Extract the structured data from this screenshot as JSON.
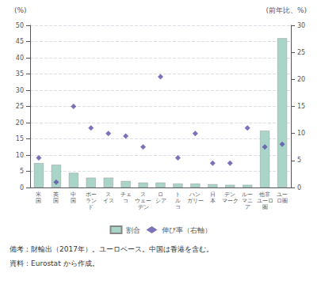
{
  "chart_data": {
    "type": "bar",
    "categories": [
      "米\n国",
      "英\n国",
      "中\n国",
      "ポー\nラン\nド",
      "ス\nイス",
      "チェ\nコ",
      "ス\nウェー\nデン",
      "ロ\nシア",
      "ト\nル\nコ",
      "ハン\nガリー",
      "日\n本",
      "デン\nマーク",
      "ルー\nマニ\nア",
      "他非\nユーロ\n圏",
      "ユー\nロ圏"
    ],
    "series": [
      {
        "name": "割合",
        "type": "bar",
        "color": "#a8d5c8",
        "values": [
          7.5,
          7.0,
          4.5,
          3.0,
          3.0,
          2.0,
          1.5,
          1.5,
          1.2,
          1.2,
          1.0,
          0.8,
          0.8,
          17.5,
          46.0
        ]
      },
      {
        "name": "伸び率（右軸）",
        "type": "scatter",
        "axis": "y2",
        "color": "#5b4fa8",
        "marker": "diamond",
        "values": [
          5.5,
          1.0,
          15.0,
          11.0,
          10.0,
          9.5,
          7.5,
          20.5,
          5.5,
          10.0,
          4.5,
          4.5,
          11.0,
          7.5,
          8.0
        ]
      }
    ],
    "ylabel": "(%)",
    "y2label": "(前年比、%)",
    "ylim": [
      0,
      50
    ],
    "yticks": [
      0,
      5,
      10,
      15,
      20,
      25,
      30,
      35,
      40,
      45,
      50
    ],
    "y2lim": [
      0,
      30
    ],
    "y2ticks": [
      0,
      5,
      10,
      15,
      20,
      25,
      30
    ],
    "grid": true,
    "legend": "bottom",
    "annotations": [
      "備考：財輸出（2017年）。ユーロベース。中国は香港を含む。",
      "資料：Eurostat から作成。"
    ]
  }
}
